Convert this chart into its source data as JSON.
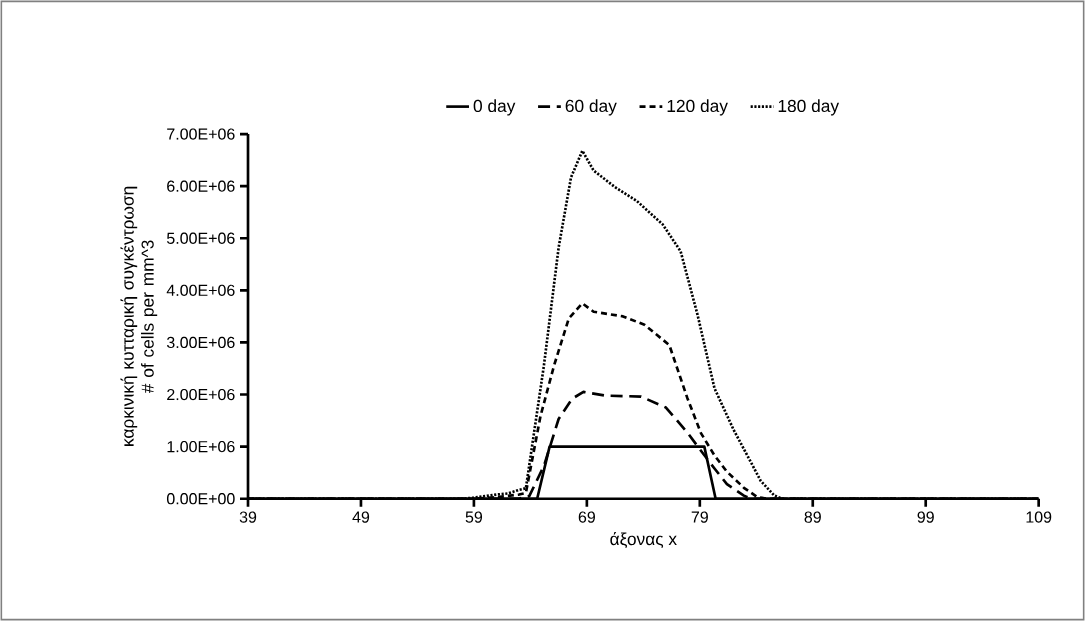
{
  "chart_data": {
    "type": "line",
    "xlabel": "άξονας x",
    "ylabel": "καρκινική κυτταρική συγκέντρωση # of cells per mm^3",
    "xlim": [
      39,
      109
    ],
    "xticks": [
      39,
      49,
      59,
      69,
      79,
      89,
      99,
      109
    ],
    "ylim": [
      0,
      7000000
    ],
    "yticks": [
      {
        "value": 0,
        "label": "0.00E+00"
      },
      {
        "value": 1000000,
        "label": "1.00E+06"
      },
      {
        "value": 2000000,
        "label": "2.00E+06"
      },
      {
        "value": 3000000,
        "label": "3.00E+06"
      },
      {
        "value": 4000000,
        "label": "4.00E+06"
      },
      {
        "value": 5000000,
        "label": "5.00E+06"
      },
      {
        "value": 6000000,
        "label": "6.00E+06"
      },
      {
        "value": 7000000,
        "label": "7.00E+06"
      }
    ],
    "grid": false,
    "legend": "top",
    "marker": "none",
    "series": [
      {
        "name": "0 day",
        "color": "#000000",
        "line_style": "solid",
        "x": [
          39,
          64.6,
          65.7,
          79.4,
          80.4,
          109
        ],
        "values": [
          0,
          0,
          1000000,
          1000000,
          0,
          0
        ]
      },
      {
        "name": "60 day",
        "color": "#000000",
        "line_style": "dashed",
        "x": [
          39,
          63.0,
          63.9,
          65.2,
          66.5,
          67.7,
          68.7,
          70.6,
          73.8,
          76.0,
          77.9,
          79.0,
          80.3,
          81.4,
          82.9,
          83.5,
          109
        ],
        "values": [
          0,
          0,
          50000,
          630000,
          1530000,
          1920000,
          2050000,
          1980000,
          1960000,
          1750000,
          1270000,
          950000,
          580000,
          280000,
          60000,
          0,
          0
        ]
      },
      {
        "name": "120 day",
        "color": "#000000",
        "line_style": "dashed",
        "x": [
          39,
          59,
          61,
          63.0,
          63.6,
          64.9,
          66.1,
          67.4,
          68.6,
          69.6,
          72.2,
          74.1,
          76.3,
          77.9,
          79.1,
          80.3,
          81.4,
          82.9,
          84.1,
          85.0,
          109
        ],
        "values": [
          0,
          0,
          30000,
          80000,
          110000,
          1590000,
          2560000,
          3460000,
          3750000,
          3590000,
          3500000,
          3340000,
          2950000,
          1930000,
          1260000,
          830000,
          520000,
          210000,
          30000,
          0,
          0
        ]
      },
      {
        "name": "180 day",
        "color": "#000000",
        "line_style": "dotted",
        "x": [
          39,
          58,
          59,
          61,
          62,
          63.0,
          63.6,
          65.2,
          66.5,
          67.6,
          68.6,
          69.6,
          71.5,
          73.4,
          75.7,
          77.3,
          78.8,
          80.3,
          82.0,
          83.5,
          84.4,
          85.6,
          86.3,
          109
        ],
        "values": [
          0,
          0,
          20000,
          80000,
          100000,
          170000,
          200000,
          2560000,
          4820000,
          6170000,
          6680000,
          6300000,
          5980000,
          5720000,
          5270000,
          4750000,
          3530000,
          2120000,
          1320000,
          710000,
          340000,
          60000,
          0,
          0
        ]
      }
    ]
  }
}
